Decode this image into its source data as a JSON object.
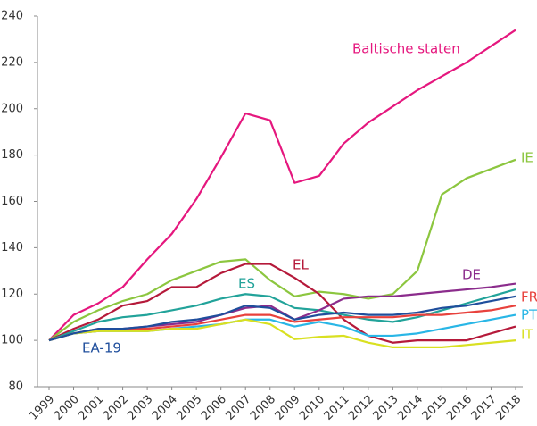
{
  "chart_data": {
    "type": "line",
    "categories": [
      "1999",
      "2000",
      "2001",
      "2002",
      "2003",
      "2004",
      "2005",
      "2006",
      "2007",
      "2008",
      "2009",
      "2010",
      "2011",
      "2012",
      "2013",
      "2014",
      "2015",
      "2016",
      "2017",
      "2018"
    ],
    "ylim": [
      80,
      240
    ],
    "yticks": [
      80,
      100,
      120,
      140,
      160,
      180,
      200,
      220,
      240
    ],
    "grid": false,
    "series": [
      {
        "name": "Baltische staten",
        "color": "#e5177e",
        "values": [
          100,
          111,
          116,
          123,
          135,
          146,
          161,
          179,
          198,
          195,
          168,
          171,
          185,
          194,
          201,
          208,
          214,
          220,
          227,
          234
        ]
      },
      {
        "name": "IE",
        "color": "#8cc63f",
        "values": [
          100,
          108,
          113,
          117,
          120,
          126,
          130,
          134,
          135,
          126,
          119,
          121,
          120,
          118,
          120,
          130,
          163,
          170,
          174,
          178
        ]
      },
      {
        "name": "EL",
        "color": "#b5193a",
        "values": [
          100,
          105,
          109,
          115,
          117,
          123,
          123,
          129,
          133,
          133,
          127,
          120,
          109,
          102,
          99,
          100,
          100,
          100,
          103,
          106
        ]
      },
      {
        "name": "ES",
        "color": "#22a39a",
        "values": [
          100,
          104,
          108,
          110,
          111,
          113,
          115,
          118,
          120,
          119,
          114,
          113,
          111,
          109,
          108,
          110,
          113,
          116,
          119,
          122
        ]
      },
      {
        "name": "DE",
        "color": "#8b2c8c",
        "values": [
          100,
          103,
          104,
          105,
          106,
          107,
          108,
          111,
          114,
          115,
          109,
          113,
          118,
          119,
          119,
          120,
          121,
          122,
          123,
          124.5
        ]
      },
      {
        "name": "FR",
        "color": "#e8413c",
        "values": [
          100,
          103,
          105,
          105,
          105,
          106,
          107,
          109,
          111,
          111,
          108,
          109,
          110,
          110,
          110,
          111,
          111,
          112,
          113,
          115
        ]
      },
      {
        "name": "PT",
        "color": "#29b6e6",
        "values": [
          100,
          103,
          104,
          104,
          104,
          105,
          106,
          107,
          109,
          109,
          106,
          108,
          106,
          102,
          102,
          103,
          105,
          107,
          109,
          111
        ]
      },
      {
        "name": "IT",
        "color": "#d9e021",
        "values": [
          100,
          103,
          104,
          104,
          104,
          105,
          105,
          107,
          109,
          107,
          100.5,
          101.5,
          102,
          99,
          97,
          97,
          97,
          98,
          99,
          100
        ]
      },
      {
        "name": "EA-19",
        "color": "#1f4e9c",
        "values": [
          100,
          103,
          105,
          105,
          106,
          108,
          109,
          111,
          115,
          114,
          109,
          111,
          112,
          111,
          111,
          112,
          114,
          115,
          117,
          119
        ]
      }
    ]
  }
}
